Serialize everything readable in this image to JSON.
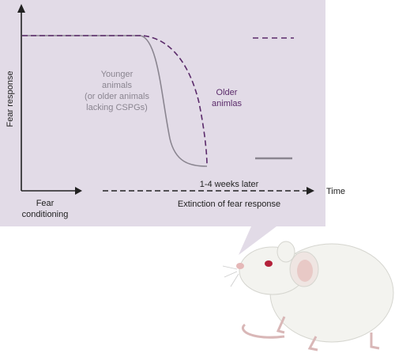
{
  "axis": {
    "y_label": "Fear response",
    "x_label": "Time"
  },
  "phases": {
    "conditioning": [
      "Fear",
      "conditioning"
    ],
    "extinction": "Extinction of fear response",
    "delay": "1-4 weeks later"
  },
  "curves": {
    "younger": [
      "Younger",
      "animals",
      "(or older animals",
      "lacking CSPGs)"
    ],
    "older": [
      "Older",
      "animlas"
    ]
  }
}
